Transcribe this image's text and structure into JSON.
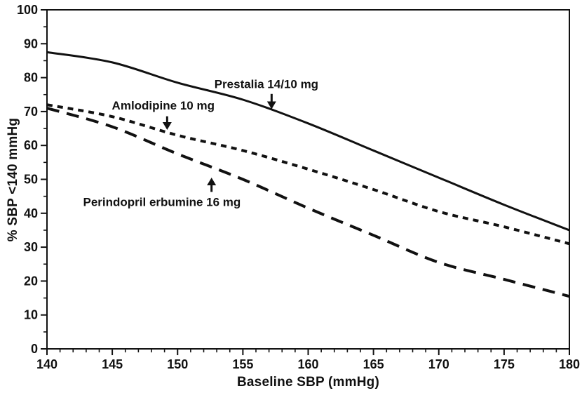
{
  "chart_data": {
    "type": "line",
    "title": "",
    "xlabel": "Baseline SBP (mmHg)",
    "ylabel": "% SBP <140 mmHg",
    "xlim": [
      140,
      180
    ],
    "ylim": [
      0,
      100
    ],
    "xticks": [
      140,
      145,
      150,
      155,
      160,
      165,
      170,
      175,
      180
    ],
    "yticks": [
      0,
      10,
      20,
      30,
      40,
      50,
      60,
      70,
      80,
      90,
      100
    ],
    "x_minor_step": 1,
    "y_minor_step": 5,
    "grid": false,
    "legend_position": "none",
    "line_color": "#111111",
    "x": [
      140,
      145,
      150,
      155,
      160,
      165,
      170,
      175,
      180
    ],
    "series": [
      {
        "name": "Prestalia 14/10 mg",
        "dash": "solid",
        "width": 3,
        "values": [
          87.5,
          84.5,
          78.5,
          73.5,
          66.5,
          58.5,
          50.5,
          42.5,
          35
        ]
      },
      {
        "name": "Amlodipine 10 mg",
        "dash": "short",
        "width": 4,
        "values": [
          72,
          68.5,
          63,
          58.5,
          53,
          47,
          40.5,
          36,
          31
        ]
      },
      {
        "name": "Perindopril erbumine 16 mg",
        "dash": "long",
        "width": 4,
        "values": [
          71,
          65.5,
          57.5,
          50,
          41.5,
          33.5,
          25.5,
          20.5,
          15.5
        ]
      }
    ],
    "annotations": [
      {
        "text": "Prestalia 14/10 mg",
        "text_x": 156.8,
        "text_y": 78.2,
        "arrow_dir": "down",
        "arrow_x": 157.2,
        "arrow_from_y": 75.2,
        "arrow_to_y": 70.9
      },
      {
        "text": "Amlodipine 10 mg",
        "text_x": 148.9,
        "text_y": 71.8,
        "arrow_dir": "down",
        "arrow_x": 149.2,
        "arrow_from_y": 68.6,
        "arrow_to_y": 64.8
      },
      {
        "text": "Perindopril erbumine 16 mg",
        "text_x": 148.8,
        "text_y": 43.4,
        "arrow_dir": "up",
        "arrow_x": 152.6,
        "arrow_from_y": 46.3,
        "arrow_to_y": 50.3
      }
    ]
  }
}
